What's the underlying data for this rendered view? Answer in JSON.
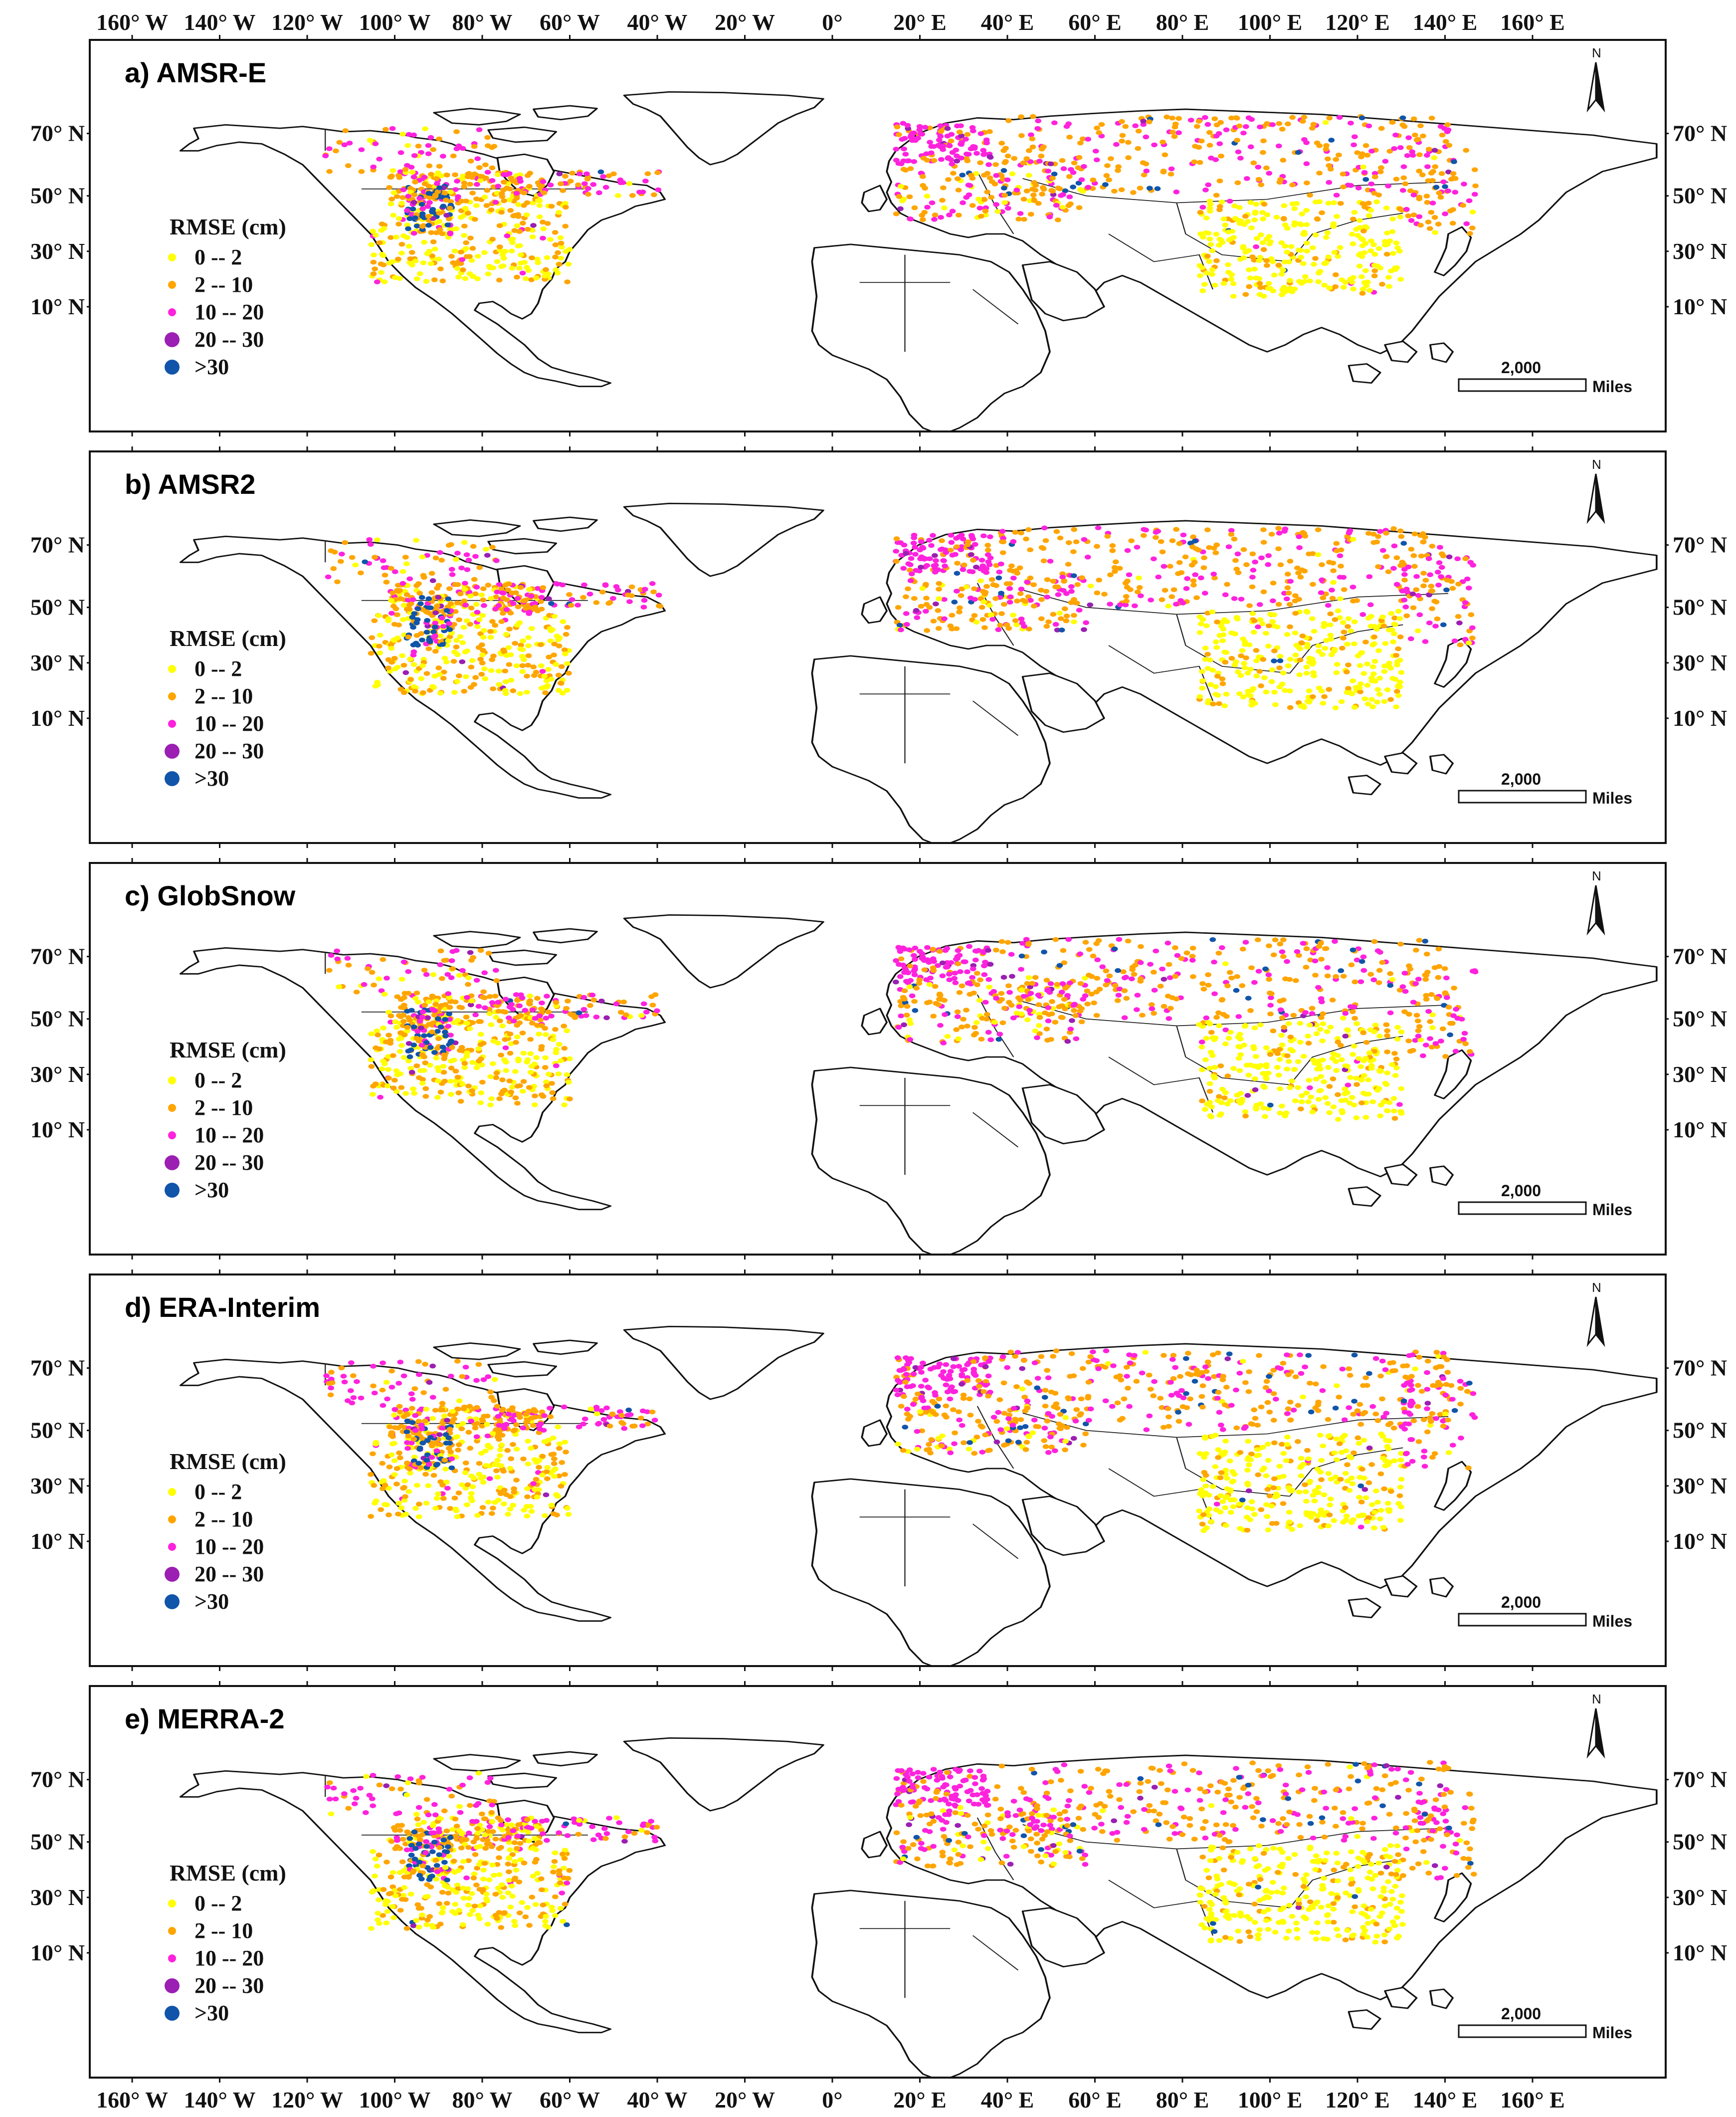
{
  "figure": {
    "top_axis_labels": [
      "160° W",
      "140° W",
      "120° W",
      "100° W",
      "80° W",
      "60° W",
      "40° W",
      "20° W",
      "0°",
      "20° E",
      "40° E",
      "60° E",
      "80° E",
      "100° E",
      "120° E",
      "140° E",
      "160° E"
    ],
    "bottom_axis_labels": [
      "160° W",
      "140° W",
      "120° W",
      "100° W",
      "80° W",
      "60° W",
      "40° W",
      "20° W",
      "0°",
      "20° E",
      "40° E",
      "60° E",
      "80° E",
      "100° E",
      "120° E",
      "140° E",
      "160° E"
    ],
    "left_lat_labels": [
      "70° N",
      "50° N",
      "30° N",
      "10° N"
    ],
    "right_lat_labels": [
      "70° N",
      "50° N",
      "30° N",
      "10° N"
    ]
  },
  "legend": {
    "title": "RMSE (cm)",
    "classes": [
      {
        "label": "0 -- 2",
        "color": "#ffff00"
      },
      {
        "label": "2 -- 10",
        "color": "#ffa500"
      },
      {
        "label": "10 -- 20",
        "color": "#ff22dd"
      },
      {
        "label": "20 -- 30",
        "color": "#9b1fb2"
      },
      {
        "label": ">30",
        "color": "#1155aa"
      }
    ]
  },
  "scale_bar": {
    "value": "2,000",
    "unit": "Miles"
  },
  "north_arrow": {
    "label": "N"
  },
  "panels": [
    {
      "title": "a) AMSR-E"
    },
    {
      "title": "b) AMSR2"
    },
    {
      "title": "c) GlobSnow"
    },
    {
      "title": "d) ERA-Interim"
    },
    {
      "title": "e) MERRA-2"
    }
  ]
}
